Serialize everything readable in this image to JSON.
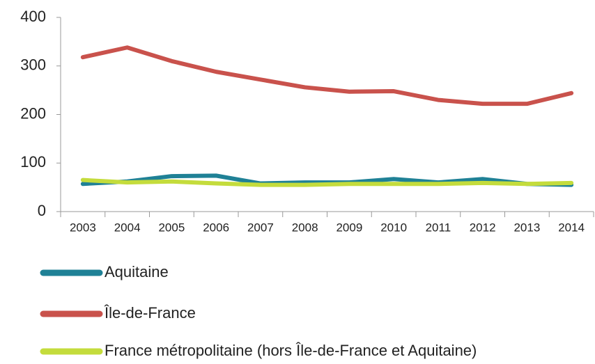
{
  "chart_data": {
    "type": "line",
    "categories": [
      "2003",
      "2004",
      "2005",
      "2006",
      "2007",
      "2008",
      "2009",
      "2010",
      "2011",
      "2012",
      "2013",
      "2014"
    ],
    "series": [
      {
        "name": "Aquitaine",
        "color": "#1f8196",
        "values": [
          57,
          62,
          73,
          74,
          58,
          60,
          60,
          67,
          60,
          67,
          57,
          55
        ]
      },
      {
        "name": "Île-de-France",
        "color": "#c9524c",
        "values": [
          318,
          338,
          310,
          288,
          272,
          256,
          247,
          248,
          230,
          222,
          222,
          244
        ]
      },
      {
        "name": "France métropolitaine (hors Île-de-France et Aquitaine)",
        "color": "#c4dc3c",
        "values": [
          65,
          60,
          62,
          58,
          55,
          55,
          57,
          57,
          57,
          59,
          57,
          59
        ]
      }
    ],
    "ylim": [
      0,
      400
    ],
    "yticks": [
      0,
      100,
      200,
      300,
      400
    ],
    "legend": "bottom"
  }
}
